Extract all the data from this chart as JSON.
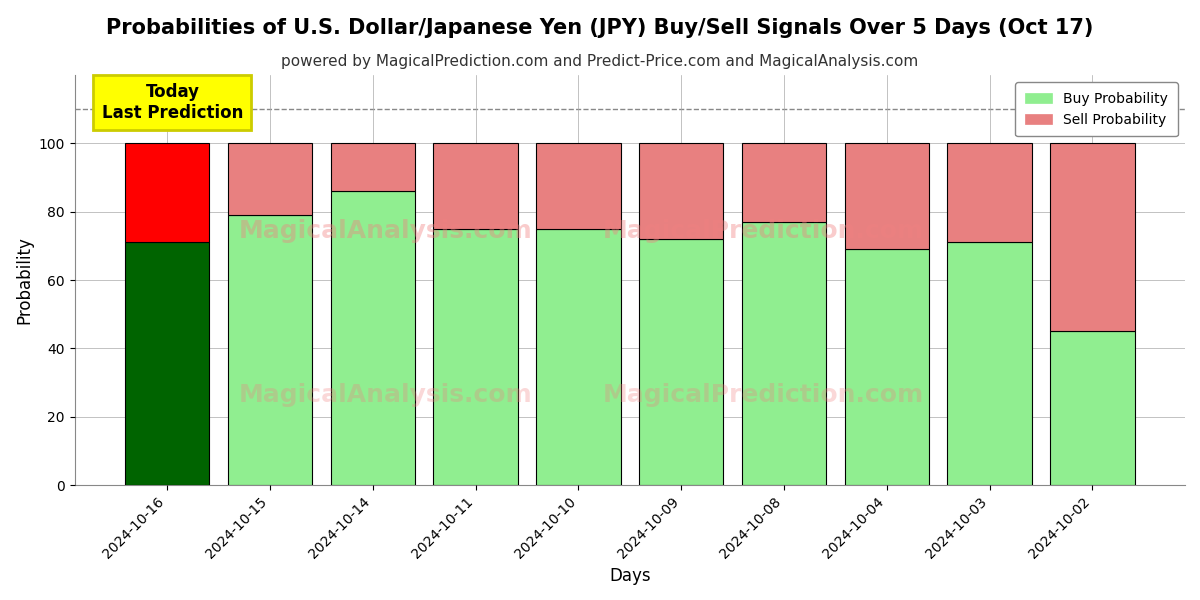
{
  "title": "Probabilities of U.S. Dollar/Japanese Yen (JPY) Buy/Sell Signals Over 5 Days (Oct 17)",
  "subtitle": "powered by MagicalPrediction.com and Predict-Price.com and MagicalAnalysis.com",
  "xlabel": "Days",
  "ylabel": "Probability",
  "categories": [
    "2024-10-16",
    "2024-10-15",
    "2024-10-14",
    "2024-10-11",
    "2024-10-10",
    "2024-10-09",
    "2024-10-08",
    "2024-10-04",
    "2024-10-03",
    "2024-10-02"
  ],
  "buy_values": [
    71,
    79,
    86,
    75,
    75,
    72,
    77,
    69,
    71,
    45
  ],
  "sell_values": [
    29,
    21,
    14,
    25,
    25,
    28,
    23,
    31,
    29,
    55
  ],
  "buy_colors": [
    "#006400",
    "#90EE90",
    "#90EE90",
    "#90EE90",
    "#90EE90",
    "#90EE90",
    "#90EE90",
    "#90EE90",
    "#90EE90",
    "#90EE90"
  ],
  "sell_colors": [
    "#FF0000",
    "#E88080",
    "#E88080",
    "#E88080",
    "#E88080",
    "#E88080",
    "#E88080",
    "#E88080",
    "#E88080",
    "#E88080"
  ],
  "legend_buy_color": "#90EE90",
  "legend_sell_color": "#E88080",
  "ylim": [
    0,
    120
  ],
  "yticks": [
    0,
    20,
    40,
    60,
    80,
    100
  ],
  "dashed_line_y": 110,
  "watermark_texts": [
    "MagicalAnalysis.com",
    "MagicalPrediction.com"
  ],
  "annotation_text": "Today\nLast Prediction",
  "annotation_bg": "#FFFF00",
  "bar_edgecolor": "#000000",
  "bar_linewidth": 0.8,
  "grid_color": "#AAAAAA",
  "background_color": "#FFFFFF",
  "title_fontsize": 15,
  "subtitle_fontsize": 11,
  "label_fontsize": 12,
  "tick_fontsize": 10
}
